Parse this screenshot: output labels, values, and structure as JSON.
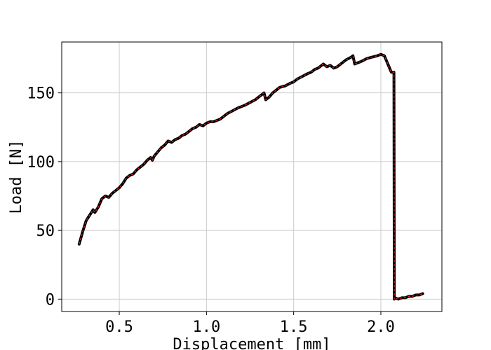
{
  "chart_data": {
    "type": "line",
    "title": "",
    "xlabel": "Displacement [mm]",
    "ylabel": "Load [N]",
    "xlim": [
      0.17,
      2.35
    ],
    "ylim": [
      -9,
      187
    ],
    "xticks": [
      0.5,
      1.0,
      1.5,
      2.0
    ],
    "xtick_labels": [
      "0.5",
      "1.0",
      "1.5",
      "2.0"
    ],
    "yticks": [
      0,
      50,
      100,
      150
    ],
    "ytick_labels": [
      "0",
      "50",
      "100",
      "150"
    ],
    "grid": true,
    "legend": false,
    "series": [
      {
        "color": "#000000",
        "overlay_color": "#d62728",
        "x": [
          0.27,
          0.29,
          0.31,
          0.33,
          0.35,
          0.36,
          0.38,
          0.4,
          0.42,
          0.44,
          0.46,
          0.48,
          0.5,
          0.52,
          0.54,
          0.56,
          0.58,
          0.6,
          0.62,
          0.64,
          0.66,
          0.68,
          0.69,
          0.7,
          0.72,
          0.74,
          0.76,
          0.78,
          0.8,
          0.82,
          0.84,
          0.86,
          0.88,
          0.9,
          0.92,
          0.94,
          0.96,
          0.98,
          1.0,
          1.02,
          1.04,
          1.06,
          1.08,
          1.1,
          1.12,
          1.15,
          1.18,
          1.2,
          1.22,
          1.25,
          1.28,
          1.3,
          1.32,
          1.33,
          1.34,
          1.36,
          1.38,
          1.4,
          1.42,
          1.45,
          1.48,
          1.5,
          1.52,
          1.55,
          1.58,
          1.6,
          1.62,
          1.64,
          1.66,
          1.67,
          1.69,
          1.71,
          1.73,
          1.75,
          1.78,
          1.8,
          1.83,
          1.84,
          1.85,
          1.87,
          1.89,
          1.92,
          1.95,
          1.98,
          2.0,
          2.02,
          2.03,
          2.05,
          2.06,
          2.075,
          2.077,
          2.08,
          2.1,
          2.12,
          2.14,
          2.16,
          2.18,
          2.2,
          2.22,
          2.24
        ],
        "y": [
          40,
          49,
          57,
          61,
          65,
          63,
          67,
          73,
          75,
          74,
          77,
          79,
          81,
          84,
          88,
          90,
          91,
          94,
          96,
          98,
          101,
          103,
          101,
          104,
          107,
          110,
          112,
          115,
          114,
          116,
          117,
          119,
          120,
          122,
          124,
          125,
          127,
          126,
          128,
          129,
          129,
          130,
          131,
          133,
          135,
          137,
          139,
          140,
          141,
          143,
          145,
          147,
          149,
          150,
          145,
          147,
          150,
          152,
          154,
          155,
          157,
          158,
          160,
          162,
          164,
          165,
          167,
          168,
          170,
          171,
          169,
          170,
          168,
          169,
          172,
          174,
          176,
          177,
          171,
          172,
          173,
          175,
          176,
          177,
          178,
          177,
          174,
          168,
          165,
          165,
          0,
          1,
          0,
          1,
          1,
          2,
          2,
          3,
          3,
          4
        ]
      }
    ]
  }
}
